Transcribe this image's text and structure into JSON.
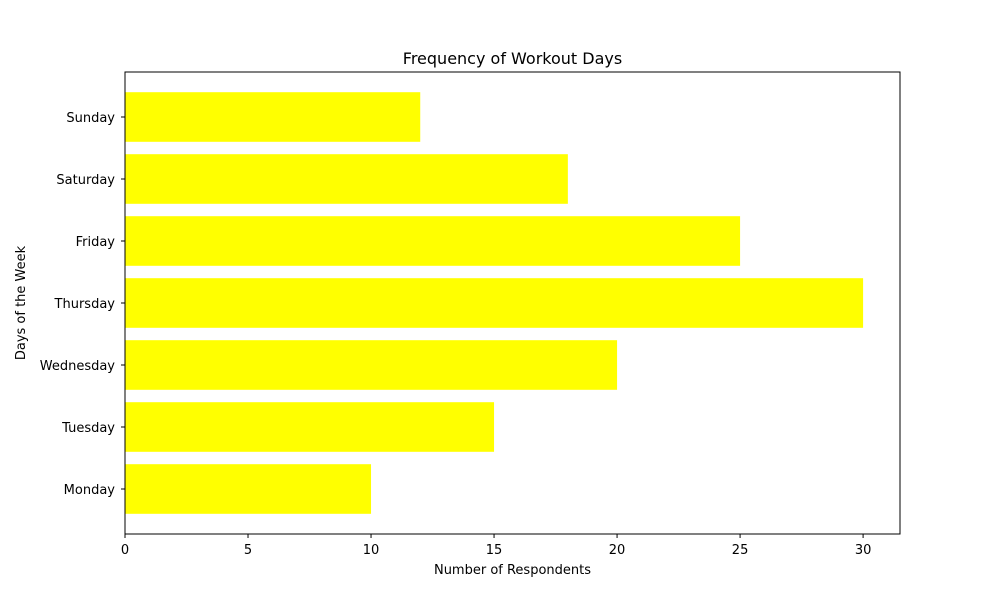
{
  "chart_data": {
    "type": "bar",
    "orientation": "horizontal",
    "title": "Frequency of Workout Days",
    "xlabel": "Number of Respondents",
    "ylabel": "Days of the Week",
    "categories": [
      "Monday",
      "Tuesday",
      "Wednesday",
      "Thursday",
      "Friday",
      "Saturday",
      "Sunday"
    ],
    "values": [
      10,
      15,
      20,
      30,
      25,
      18,
      12
    ],
    "xlim": [
      0,
      31.5
    ],
    "xticks": [
      0,
      5,
      10,
      15,
      20,
      25,
      30
    ],
    "grid": false,
    "bar_color": "#ffff00"
  }
}
